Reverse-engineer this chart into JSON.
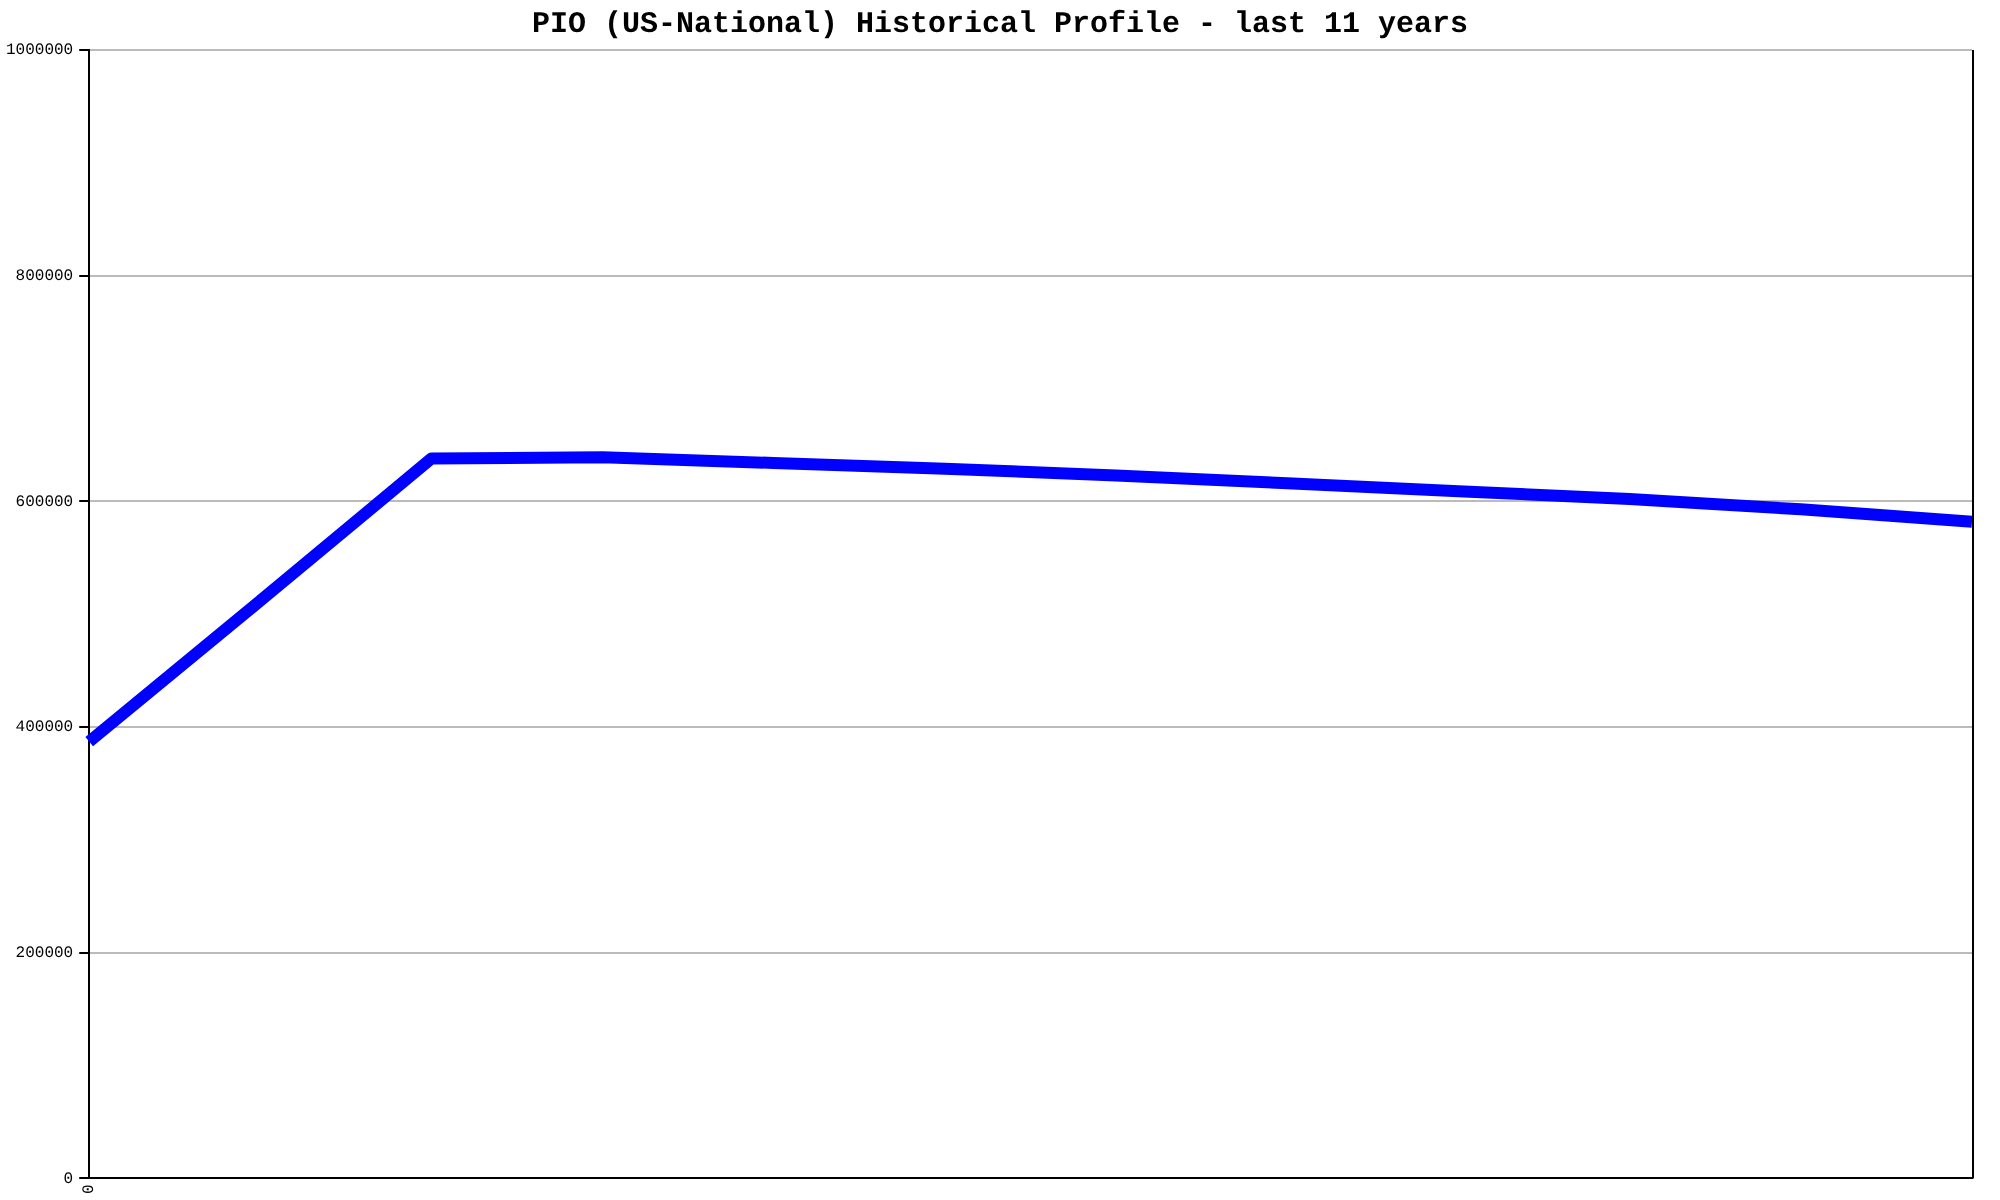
{
  "chart_data": {
    "type": "line",
    "title": "PIO (US-National) Historical Profile - last 11 years",
    "categories": [
      "0",
      null,
      null,
      null,
      null,
      null,
      null,
      null,
      null,
      null,
      null,
      null
    ],
    "series": [
      {
        "color": "#0000ff",
        "values": [
          387000,
          512000,
          638000,
          639000,
          634000,
          629000,
          623000,
          616000,
          609000,
          602000,
          593000,
          582000
        ]
      }
    ],
    "ylim": [
      0,
      1000000
    ],
    "yticks": [
      0,
      200000,
      400000,
      600000,
      800000,
      1000000
    ],
    "grid": "y",
    "legend": false,
    "marker": "none",
    "line_style": "solid"
  }
}
